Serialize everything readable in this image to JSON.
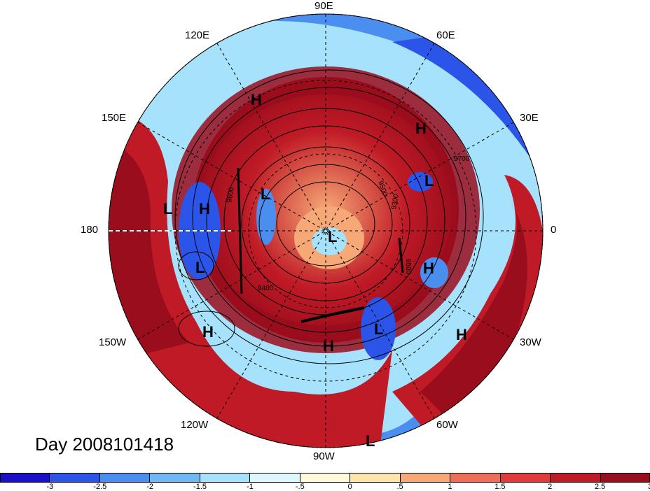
{
  "map": {
    "title": "Day 2008101418",
    "longitude_labels": {
      "e90": "90E",
      "e60": "60E",
      "e30": "30E",
      "e0": "0",
      "w30": "30W",
      "w60": "60W",
      "w90": "90W",
      "w120": "120W",
      "w150": "150W",
      "w180": "180",
      "e150": "150E",
      "e120": "120E"
    },
    "contour_labels": [
      "9400",
      "9500",
      "9600",
      "9700",
      "9300",
      "9200"
    ],
    "pressure_centers": [
      "H",
      "H",
      "H",
      "H",
      "H",
      "H",
      "H",
      "H",
      "L",
      "L",
      "L",
      "L",
      "L",
      "L",
      "L"
    ],
    "colorbar": {
      "colors": [
        "#1c0fc8",
        "#2a55e8",
        "#4a8ff0",
        "#6fb8f5",
        "#a6e2fb",
        "#def6ff",
        "#fffbd8",
        "#fde4a8",
        "#f6a876",
        "#ee6e58",
        "#e23a3a",
        "#c01a26",
        "#9a0d1c"
      ],
      "ticks": [
        "-3",
        "-2.5",
        "-2",
        "-1.5",
        "-1",
        "-.5",
        "0",
        ".5",
        "1",
        "1.5",
        "2",
        "2.5",
        "3"
      ]
    }
  }
}
